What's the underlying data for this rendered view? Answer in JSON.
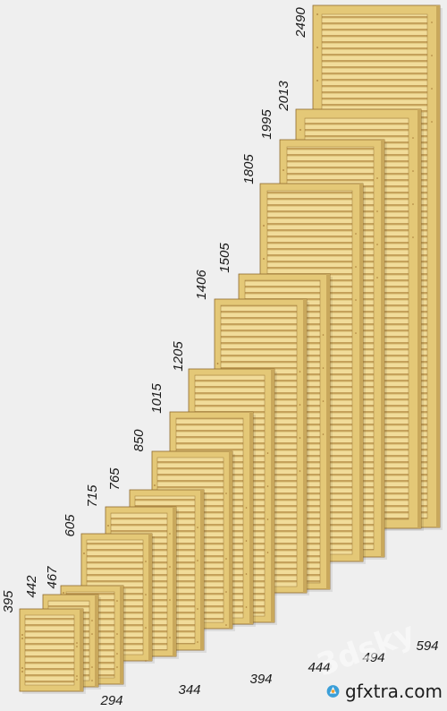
{
  "image": {
    "subject": "louvered wooden shutter doors",
    "colors": {
      "background": "#efefef",
      "wood": "#f1dc9a",
      "wood_frame": "#e4c877",
      "slat_shadow": "#b9924a",
      "edge": "#8f6b2f",
      "knot": "#9a6a2a"
    }
  },
  "heights": [
    "395",
    "442",
    "467",
    "605",
    "715",
    "765",
    "850",
    "1015",
    "1205",
    "1406",
    "1505",
    "1805",
    "1995",
    "2013",
    "2490"
  ],
  "widths": [
    "294",
    "344",
    "394",
    "444",
    "494",
    "594"
  ],
  "watermark": {
    "text": "3dsky"
  },
  "brand": {
    "name": "gfxtra.com",
    "logo_icon": "gfxtra-logo-icon"
  }
}
